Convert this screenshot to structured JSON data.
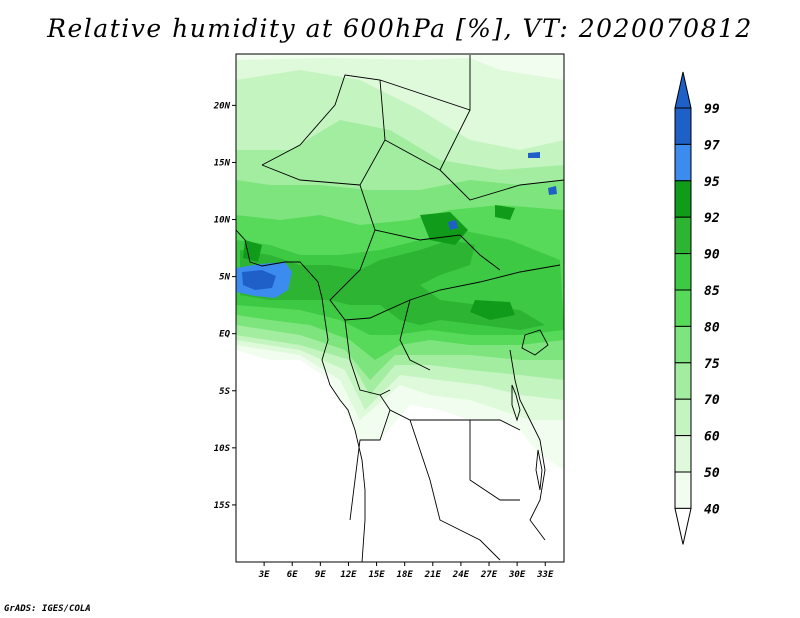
{
  "title": "Relative humidity at 600hPa [%], VT: 2020070812",
  "credit": "GrADS: IGES/COLA",
  "lat_labels": [
    "20N",
    "15N",
    "10N",
    "5N",
    "EQ",
    "5S",
    "10S",
    "15S"
  ],
  "lat_values": [
    20,
    15,
    10,
    5,
    0,
    -5,
    -10,
    -15
  ],
  "lon_labels": [
    "3E",
    "6E",
    "9E",
    "12E",
    "15E",
    "18E",
    "21E",
    "24E",
    "27E",
    "30E",
    "33E"
  ],
  "lon_values": [
    3,
    6,
    9,
    12,
    15,
    18,
    21,
    24,
    27,
    30,
    33
  ],
  "map_extent": {
    "lon_min": 0,
    "lon_max": 35,
    "lat_min": -20,
    "lat_max": 24.5
  },
  "colorbar": {
    "levels": [
      "99",
      "97",
      "95",
      "92",
      "90",
      "85",
      "80",
      "75",
      "70",
      "60",
      "50",
      "40"
    ],
    "colors": [
      "#1f60c8",
      "#1f60c8",
      "#3c8cf0",
      "#119b1a",
      "#2db432",
      "#3dc943",
      "#57d95a",
      "#7ee47e",
      "#a3eda1",
      "#c4f4c0",
      "#dff9db",
      "#f1fdee"
    ]
  },
  "palette": {
    "rh_40": "#f1fdee",
    "rh_50": "#dff9db",
    "rh_60": "#c4f4c0",
    "rh_70": "#a3eda1",
    "rh_75": "#7ee47e",
    "rh_80": "#57d95a",
    "rh_85": "#3dc943",
    "rh_90": "#2db432",
    "rh_92": "#119b1a",
    "rh_95": "#3c8cf0",
    "rh_97": "#1f60c8"
  }
}
